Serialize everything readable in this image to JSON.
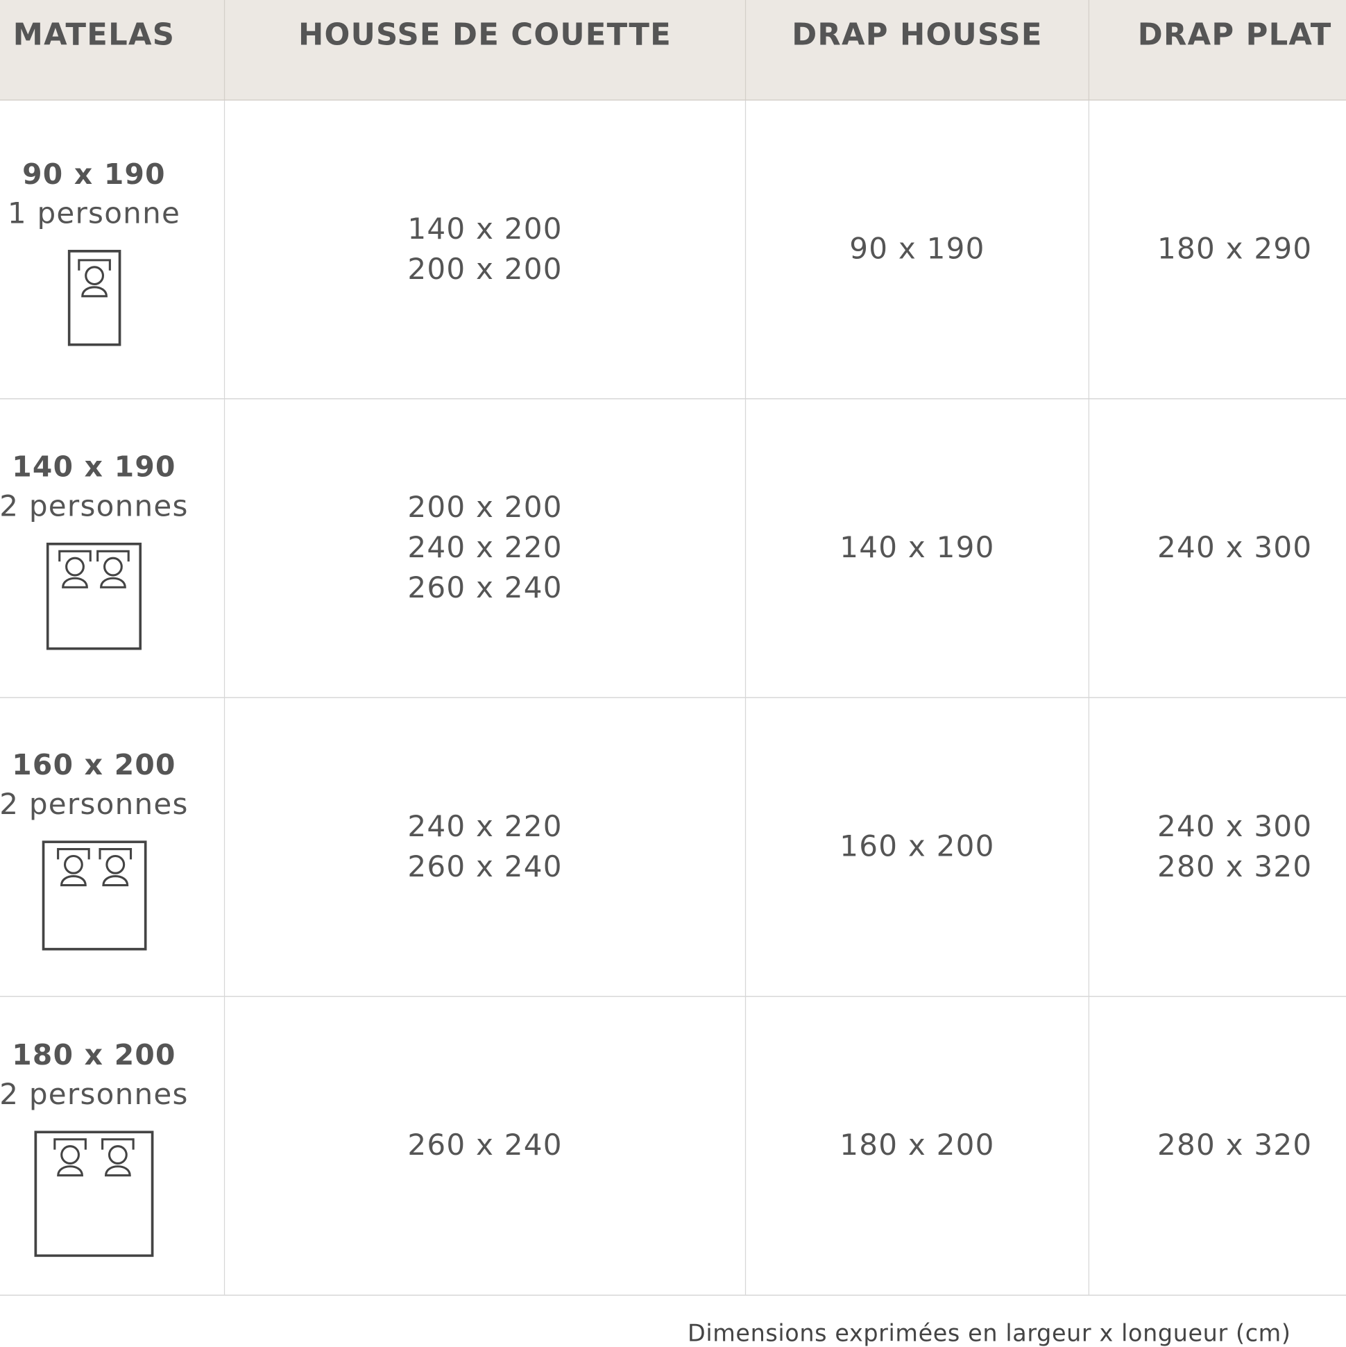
{
  "headers": [
    "MATELAS",
    "HOUSSE DE COUETTE",
    "DRAP HOUSSE",
    "DRAP PLAT"
  ],
  "rows": [
    {
      "size": "90 x 190",
      "persons": "1 personne",
      "people_count": 1,
      "housse": [
        "140 x 200",
        "200 x 200"
      ],
      "drap_housse": [
        "90 x 190"
      ],
      "drap_plat": [
        "180 x 290"
      ]
    },
    {
      "size": "140 x 190",
      "persons": "2 personnes",
      "people_count": 2,
      "housse": [
        "200 x 200",
        "240 x 220",
        "260 x 240"
      ],
      "drap_housse": [
        "140 x 190"
      ],
      "drap_plat": [
        "240 x 300"
      ]
    },
    {
      "size": "160 x 200",
      "persons": "2 personnes",
      "people_count": 2,
      "housse": [
        "240 x 220",
        "260 x 240"
      ],
      "drap_housse": [
        "160 x 200"
      ],
      "drap_plat": [
        "240 x 300",
        "280 x 320"
      ]
    },
    {
      "size": "180 x 200",
      "persons": "2 personnes",
      "people_count": 2,
      "housse": [
        "260 x 240"
      ],
      "drap_housse": [
        "180 x 200"
      ],
      "drap_plat": [
        "280 x 320"
      ]
    }
  ],
  "footer": "Dimensions exprimées en largeur x longueur (cm)",
  "colors": {
    "header_bg": "#ece8e3",
    "text": "#555555"
  }
}
